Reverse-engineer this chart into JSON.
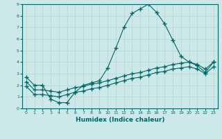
{
  "xlabel": "Humidex (Indice chaleur)",
  "background_color": "#cce8e8",
  "line_color": "#006666",
  "grid_color": "#b8d8d8",
  "xlim": [
    -0.5,
    23.5
  ],
  "ylim": [
    0,
    9
  ],
  "xticks": [
    0,
    1,
    2,
    3,
    4,
    5,
    6,
    7,
    8,
    9,
    10,
    11,
    12,
    13,
    14,
    15,
    16,
    17,
    18,
    19,
    20,
    21,
    22,
    23
  ],
  "yticks": [
    0,
    1,
    2,
    3,
    4,
    5,
    6,
    7,
    8,
    9
  ],
  "series1_x": [
    0,
    1,
    2,
    3,
    4,
    5,
    6,
    7,
    8,
    9,
    10,
    11,
    12,
    13,
    14,
    15,
    16,
    17,
    18,
    19,
    20,
    21,
    22,
    23
  ],
  "series1_y": [
    2.7,
    2.0,
    2.0,
    0.8,
    0.5,
    0.5,
    1.4,
    2.0,
    2.2,
    2.4,
    3.5,
    5.2,
    7.0,
    8.2,
    8.6,
    9.0,
    8.3,
    7.3,
    5.9,
    4.5,
    4.0,
    3.7,
    3.1,
    4.0
  ],
  "series2_x": [
    0,
    1,
    2,
    3,
    4,
    5,
    6,
    7,
    8,
    9,
    10,
    11,
    12,
    13,
    14,
    15,
    16,
    17,
    18,
    19,
    20,
    21,
    22,
    23
  ],
  "series2_y": [
    2.3,
    1.6,
    1.6,
    1.5,
    1.4,
    1.6,
    1.8,
    1.9,
    2.1,
    2.2,
    2.4,
    2.6,
    2.8,
    3.0,
    3.1,
    3.3,
    3.5,
    3.6,
    3.8,
    3.9,
    4.0,
    3.8,
    3.4,
    4.0
  ],
  "series3_x": [
    0,
    1,
    2,
    3,
    4,
    5,
    6,
    7,
    8,
    9,
    10,
    11,
    12,
    13,
    14,
    15,
    16,
    17,
    18,
    19,
    20,
    21,
    22,
    23
  ],
  "series3_y": [
    1.9,
    1.2,
    1.2,
    1.1,
    1.0,
    1.2,
    1.4,
    1.5,
    1.7,
    1.8,
    2.0,
    2.2,
    2.4,
    2.6,
    2.7,
    2.9,
    3.1,
    3.2,
    3.4,
    3.5,
    3.6,
    3.4,
    3.0,
    3.6
  ]
}
